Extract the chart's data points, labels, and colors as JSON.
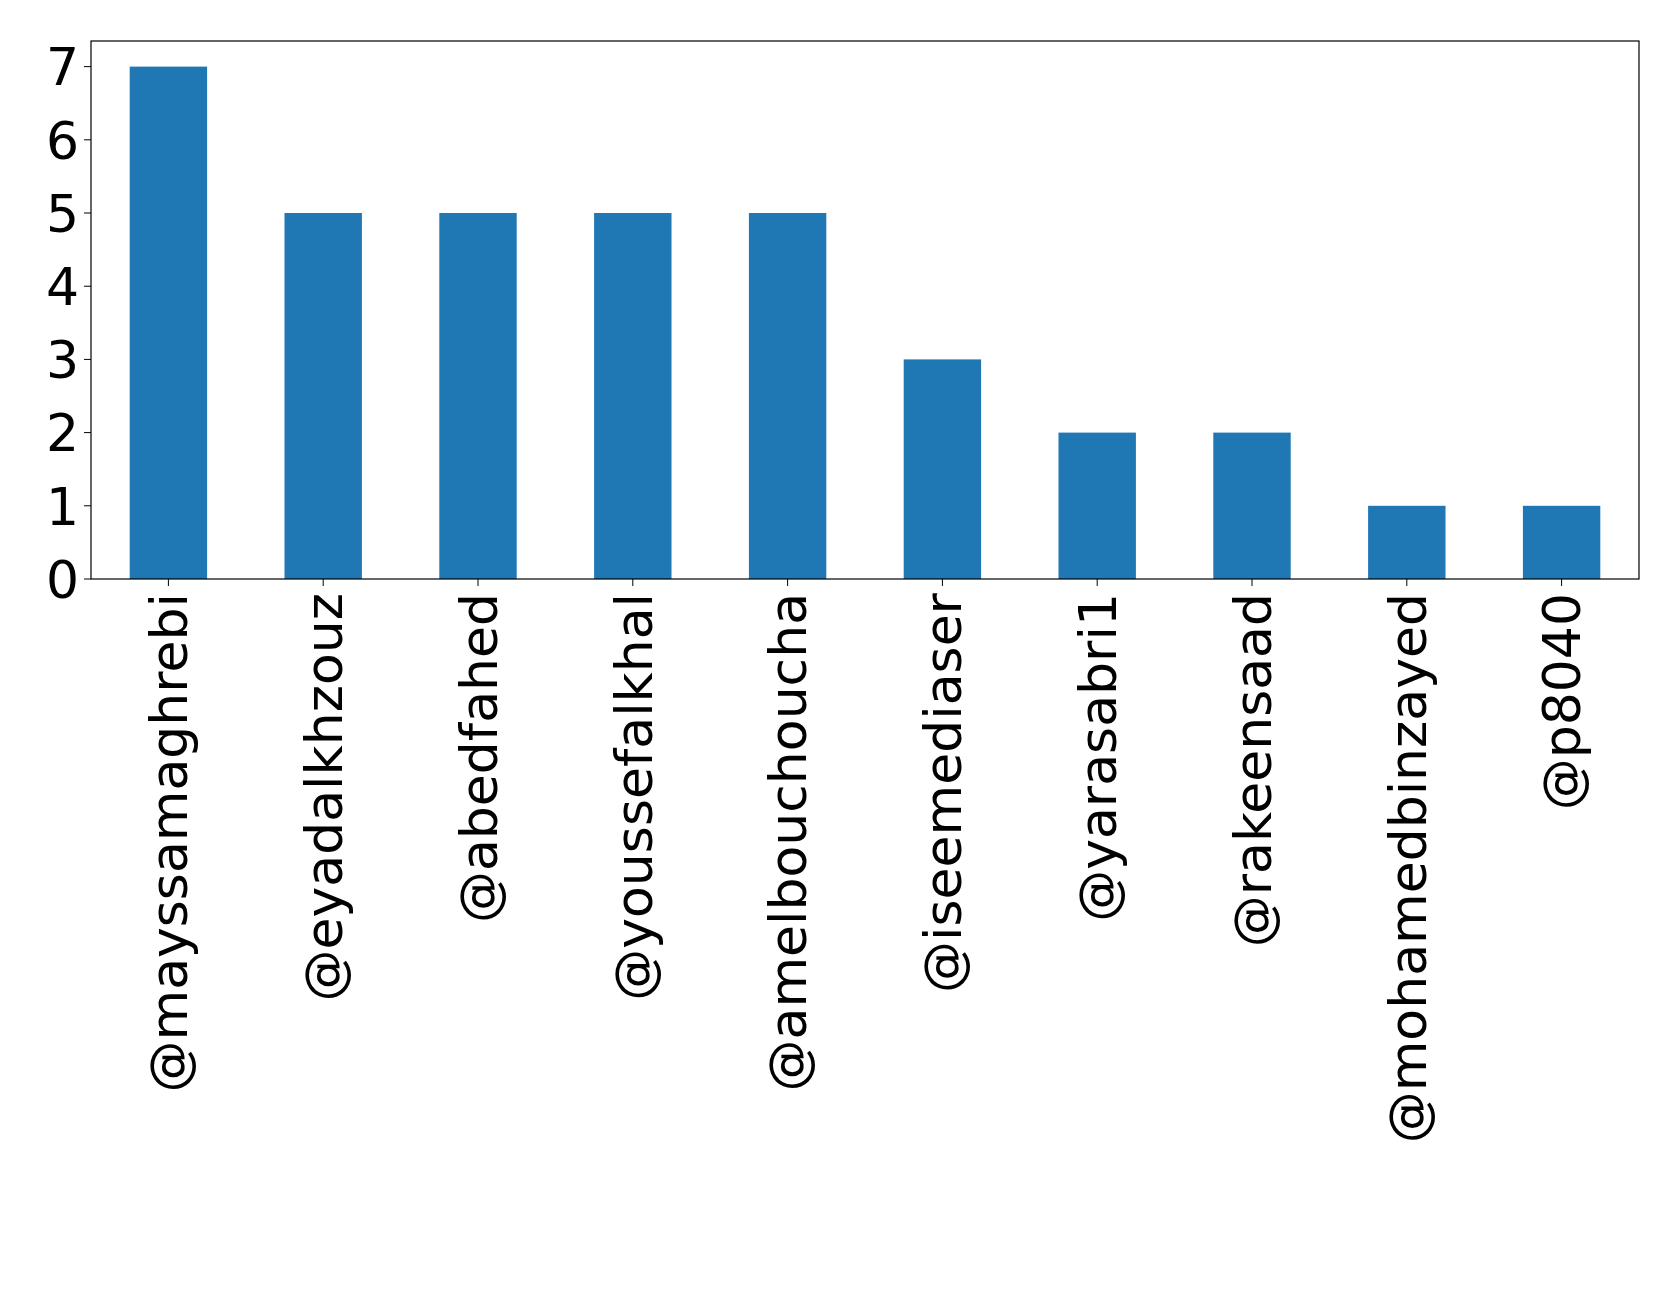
{
  "chart_data": {
    "type": "bar",
    "categories": [
      "@mayssamaghrebi",
      "@eyadalkhzouz",
      "@abedfahed",
      "@youssefalkhal",
      "@amelbouchoucha",
      "@iseemediaser",
      "@yarasabri1",
      "@rakeensaad",
      "@mohamedbinzayed",
      "@p8040"
    ],
    "values": [
      7,
      5,
      5,
      5,
      5,
      3,
      2,
      2,
      1,
      1
    ],
    "color": "#1f77b4",
    "ylim": [
      0,
      7.35
    ],
    "yticks": [
      0,
      1,
      2,
      3,
      4,
      5,
      6,
      7
    ],
    "grid": false
  }
}
